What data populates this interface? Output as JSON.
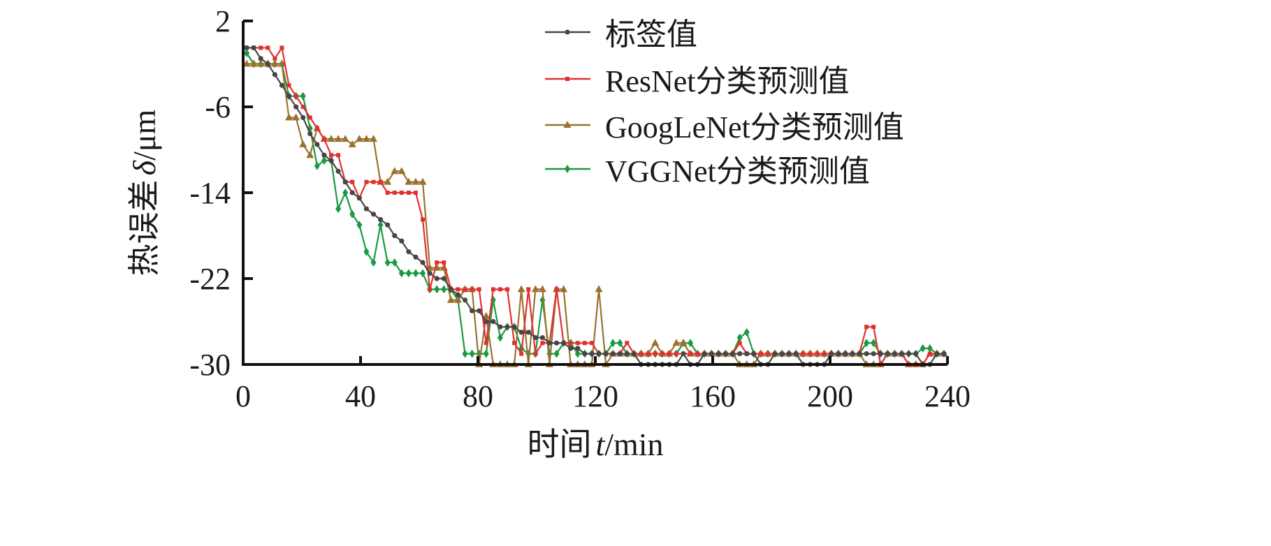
{
  "chart_data": {
    "type": "line",
    "xlabel_prefix": "时间",
    "xlabel_var": "t",
    "xlabel_unit": "/min",
    "ylabel_prefix": "热误差",
    "ylabel_var": "δ",
    "ylabel_unit": "/μm",
    "xlim": [
      0,
      240
    ],
    "ylim": [
      -30,
      2
    ],
    "xticks": [
      0,
      40,
      80,
      120,
      160,
      200,
      240
    ],
    "yticks": [
      2,
      -6,
      -14,
      -22,
      -30
    ],
    "legend_position": "top-right",
    "x_start": 1.2,
    "x_step": 2.4,
    "series": [
      {
        "name": "标签值",
        "color": "#4a4545",
        "marker": "circle",
        "values": [
          -0.5,
          -0.5,
          -1.5,
          -2,
          -3,
          -4,
          -5,
          -6,
          -7,
          -8.5,
          -9.5,
          -10.5,
          -11,
          -12,
          -13,
          -14,
          -14.5,
          -15.5,
          -16,
          -16.5,
          -17,
          -18,
          -18.5,
          -19.5,
          -20,
          -20.5,
          -21.5,
          -22,
          -22,
          -23,
          -23.5,
          -24,
          -25,
          -25,
          -26,
          -26,
          -26.5,
          -26.5,
          -26.5,
          -27,
          -27,
          -27.5,
          -27.5,
          -28,
          -28,
          -28,
          -28.5,
          -28.5,
          -29,
          -29,
          -29,
          -29,
          -29,
          -29,
          -29,
          -29,
          -30,
          -30,
          -30,
          -30,
          -30,
          -30,
          -29,
          -30,
          -30,
          -29,
          -29,
          -29,
          -29,
          -29,
          -29,
          -29,
          -29,
          -30,
          -30,
          -29,
          -29,
          -29,
          -29,
          -30,
          -30,
          -30,
          -30,
          -29,
          -29,
          -29,
          -29,
          -29,
          -29,
          -29,
          -29,
          -29,
          -29,
          -29,
          -29,
          -29,
          -30,
          -30,
          -29,
          -29
        ]
      },
      {
        "name": "ResNet分类预测值",
        "color": "#e03030",
        "marker": "square",
        "values": [
          -0.5,
          -0.5,
          -0.5,
          -0.5,
          -1.5,
          -0.5,
          -4,
          -5,
          -6,
          -7,
          -8,
          -9,
          -10.5,
          -10.5,
          -13,
          -13,
          -14.5,
          -13,
          -13,
          -13,
          -14,
          -14,
          -14,
          -14,
          -14,
          -16.5,
          -23,
          -20.5,
          -20.5,
          -23,
          -23,
          -23,
          -23,
          -23,
          -28,
          -23,
          -23,
          -23,
          -28,
          -29,
          -23,
          -29,
          -28,
          -28,
          -23,
          -28,
          -28,
          -28,
          -28,
          -28,
          -29,
          -29,
          -29,
          -29,
          -28,
          -29,
          -29,
          -29,
          -29,
          -29,
          -29,
          -29,
          -29,
          -29,
          -29,
          -29,
          -29,
          -29,
          -29,
          -29,
          -28,
          -29,
          -29,
          -29,
          -29,
          -29,
          -29,
          -29,
          -29,
          -29,
          -29,
          -29,
          -29,
          -29,
          -29,
          -29,
          -29,
          -29,
          -26.5,
          -26.5,
          -30,
          -29,
          -29,
          -29,
          -30,
          -30,
          -30,
          -29,
          -29,
          -29
        ]
      },
      {
        "name": "GoogLeNet分类预测值",
        "color": "#9a7230",
        "marker": "triangle",
        "values": [
          -2,
          -2,
          -2,
          -2,
          -2,
          -2,
          -7,
          -7,
          -9.5,
          -10.5,
          -8,
          -9,
          -9,
          -9,
          -9,
          -9.5,
          -9,
          -9,
          -9,
          -13,
          -13,
          -12,
          -12,
          -13,
          -13,
          -13,
          -21,
          -21,
          -21,
          -24,
          -24,
          -23,
          -23,
          -30,
          -25.5,
          -30,
          -30,
          -30,
          -30,
          -23,
          -30,
          -23,
          -23,
          -30,
          -23,
          -23,
          -30,
          -30,
          -30,
          -30,
          -23,
          -30,
          -29,
          -29,
          -29,
          -29,
          -29,
          -29,
          -28,
          -29,
          -29,
          -28,
          -28,
          -29,
          -29,
          -29,
          -29,
          -29,
          -29,
          -29,
          -30,
          -30,
          -30,
          -29,
          -29,
          -29,
          -29,
          -29,
          -29,
          -29,
          -29,
          -29,
          -29,
          -29,
          -29,
          -29,
          -29,
          -29,
          -30,
          -30,
          -30,
          -29,
          -29,
          -29,
          -30,
          -30,
          -30,
          -29,
          -29,
          -29
        ]
      },
      {
        "name": "VGGNet分类预测值",
        "color": "#1a9a40",
        "marker": "diamond",
        "values": [
          -1,
          -2,
          -2,
          -2,
          -2,
          -2,
          -5,
          -5,
          -5,
          -8,
          -11.5,
          -11,
          -11,
          -15.5,
          -14,
          -16,
          -17,
          -19.5,
          -20.5,
          -17,
          -20.5,
          -20.5,
          -21.5,
          -21.5,
          -21.5,
          -21.5,
          -23,
          -23,
          -23,
          -23,
          -24,
          -29,
          -29,
          -29,
          -29,
          -24,
          -27.5,
          -26.5,
          -26.5,
          -28.5,
          -29,
          -29,
          -24,
          -29,
          -29,
          -28,
          -28,
          -29,
          -29,
          -29,
          -29,
          -29,
          -28,
          -28,
          -29,
          -29,
          -29,
          -29,
          -29,
          -29,
          -29,
          -29,
          -28,
          -28,
          -29,
          -29,
          -29,
          -29,
          -29,
          -29,
          -27.5,
          -27,
          -29,
          -29,
          -29,
          -29,
          -29,
          -29,
          -29,
          -29,
          -29,
          -29,
          -29,
          -29,
          -29,
          -29,
          -29,
          -29,
          -28,
          -28,
          -29,
          -29,
          -29,
          -29,
          -29,
          -29,
          -28.5,
          -28.5,
          -29,
          -29
        ]
      }
    ]
  }
}
